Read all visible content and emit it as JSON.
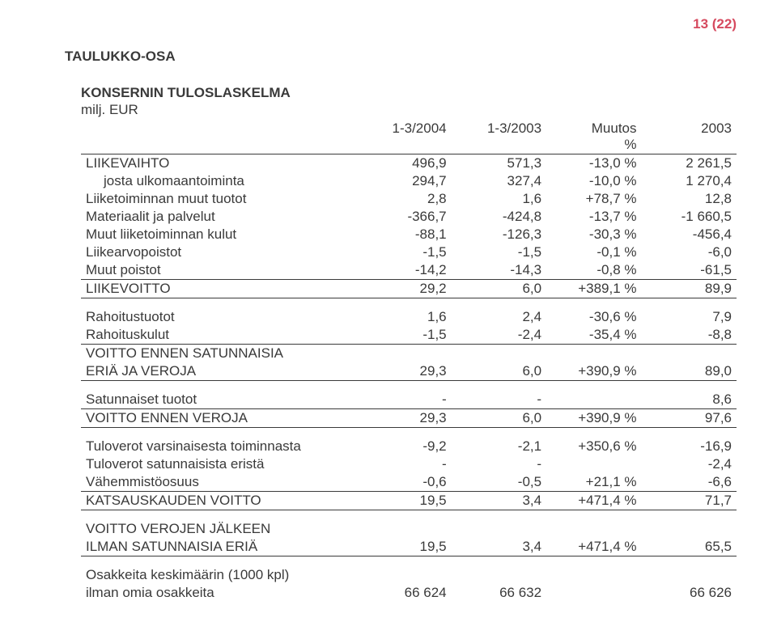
{
  "page_number": "13 (22)",
  "section_title": "TAULUKKO-OSA",
  "table_title": "KONSERNIN TULOSLASKELMA",
  "table_subtitle": "milj. EUR",
  "headers": {
    "c1": "1-3/2004",
    "c2": "1-3/2003",
    "c3_top": "Muutos",
    "c3_bot": "%",
    "c4": "2003"
  },
  "rows": [
    {
      "label": "LIIKEVAIHTO",
      "c1": "496,9",
      "c2": "571,3",
      "c3": "-13,0 %",
      "c4": "2 261,5"
    },
    {
      "label": "josta ulkomaantoiminta",
      "indent": true,
      "c1": "294,7",
      "c2": "327,4",
      "c3": "-10,0 %",
      "c4": "1 270,4"
    },
    {
      "label": "Liiketoiminnan muut tuotot",
      "c1": "2,8",
      "c2": "1,6",
      "c3": "+78,7 %",
      "c4": "12,8"
    },
    {
      "label": "Materiaalit ja palvelut",
      "c1": "-366,7",
      "c2": "-424,8",
      "c3": "-13,7 %",
      "c4": "-1 660,5"
    },
    {
      "label": "Muut liiketoiminnan kulut",
      "c1": "-88,1",
      "c2": "-126,3",
      "c3": "-30,3 %",
      "c4": "-456,4"
    },
    {
      "label": "Liikearvopoistot",
      "c1": "-1,5",
      "c2": "-1,5",
      "c3": "-0,1 %",
      "c4": "-6,0"
    },
    {
      "label": "Muut poistot",
      "c1": "-14,2",
      "c2": "-14,3",
      "c3": "-0,8 %",
      "c4": "-61,5",
      "line_below": true
    },
    {
      "label": "LIIKEVOITTO",
      "c1": "29,2",
      "c2": "6,0",
      "c3": "+389,1 %",
      "c4": "89,9",
      "line_below": true
    },
    {
      "spacer": true
    },
    {
      "label": "Rahoitustuotot",
      "c1": "1,6",
      "c2": "2,4",
      "c3": "-30,6 %",
      "c4": "7,9"
    },
    {
      "label": "Rahoituskulut",
      "c1": "-1,5",
      "c2": "-2,4",
      "c3": "-35,4 %",
      "c4": "-8,8",
      "line_below": true
    },
    {
      "label": "VOITTO ENNEN SATUNNAISIA"
    },
    {
      "label": "ERIÄ JA VEROJA",
      "c1": "29,3",
      "c2": "6,0",
      "c3": "+390,9 %",
      "c4": "89,0",
      "line_below": true
    },
    {
      "spacer": true
    },
    {
      "label": "Satunnaiset tuotot",
      "c1": "-",
      "c2": "-",
      "c3": "",
      "c4": "8,6",
      "line_below": true
    },
    {
      "label": "VOITTO ENNEN VEROJA",
      "c1": "29,3",
      "c2": "6,0",
      "c3": "+390,9 %",
      "c4": "97,6",
      "line_below": true
    },
    {
      "spacer": true
    },
    {
      "label": "Tuloverot varsinaisesta toiminnasta",
      "c1": "-9,2",
      "c2": "-2,1",
      "c3": "+350,6 %",
      "c4": "-16,9"
    },
    {
      "label": "Tuloverot satunnaisista eristä",
      "c1": "-",
      "c2": "-",
      "c3": "",
      "c4": "-2,4"
    },
    {
      "label": "Vähemmistöosuus",
      "c1": "-0,6",
      "c2": "-0,5",
      "c3": "+21,1 %",
      "c4": "-6,6",
      "line_below": true
    },
    {
      "label": "KATSAUSKAUDEN VOITTO",
      "c1": "19,5",
      "c2": "3,4",
      "c3": "+471,4 %",
      "c4": "71,7",
      "line_below": true
    },
    {
      "spacer": true
    },
    {
      "label": "VOITTO VEROJEN JÄLKEEN"
    },
    {
      "label": "ILMAN SATUNNAISIA ERIÄ",
      "c1": "19,5",
      "c2": "3,4",
      "c3": "+471,4 %",
      "c4": "65,5",
      "line_below": true
    },
    {
      "spacer": true
    },
    {
      "label": "Osakkeita keskimäärin (1000 kpl)"
    },
    {
      "label": "ilman omia osakkeita",
      "c1": "66 624",
      "c2": "66 632",
      "c3": "",
      "c4": "66 626"
    }
  ]
}
